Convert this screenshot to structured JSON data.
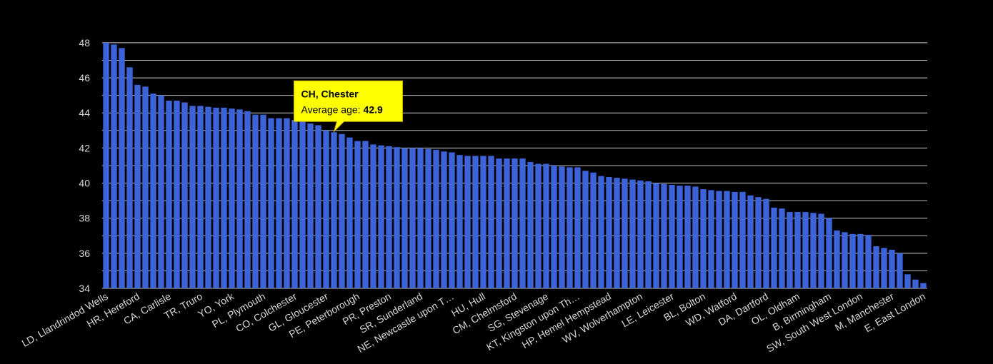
{
  "chart_data": {
    "type": "bar",
    "categories": [
      "LD, Llandrindod Wells",
      null,
      null,
      null,
      "HR, Hereford",
      null,
      null,
      null,
      "CA, Carlisle",
      null,
      null,
      null,
      "TR, Truro",
      null,
      null,
      null,
      "YO, York",
      null,
      null,
      null,
      "PL, Plymouth",
      null,
      null,
      null,
      "CO, Colchester",
      null,
      null,
      null,
      "GL, Gloucester",
      null,
      null,
      null,
      "PE, Peterborough",
      null,
      null,
      null,
      "PR, Preston",
      null,
      null,
      null,
      "SR, Sunderland",
      null,
      null,
      null,
      "NE, Newcastle upon T…",
      null,
      null,
      null,
      "HU, Hull",
      null,
      null,
      null,
      "CM, Chelmsford",
      null,
      null,
      null,
      "SG, Stevenage",
      null,
      null,
      null,
      "KT, Kingston upon Th…",
      null,
      null,
      null,
      "HP, Hemel Hempstead",
      null,
      null,
      null,
      "WV, Wolverhampton",
      null,
      null,
      null,
      "LE, Leicester",
      null,
      null,
      null,
      "BL, Bolton",
      null,
      null,
      null,
      "WD, Watford",
      null,
      null,
      null,
      "DA, Dartford",
      null,
      null,
      null,
      "OL, Oldham",
      null,
      null,
      null,
      "B, Birmingham",
      null,
      null,
      null,
      "SW, South West London",
      null,
      null,
      null,
      "M, Manchester",
      null,
      null,
      null,
      "E, East London"
    ],
    "values": [
      48.0,
      47.9,
      47.7,
      46.6,
      45.6,
      45.5,
      45.1,
      45.0,
      44.7,
      44.7,
      44.6,
      44.4,
      44.4,
      44.35,
      44.3,
      44.3,
      44.25,
      44.2,
      44.1,
      43.9,
      43.9,
      43.7,
      43.7,
      43.7,
      43.6,
      43.5,
      43.4,
      43.3,
      43.0,
      42.9,
      42.8,
      42.6,
      42.4,
      42.4,
      42.2,
      42.15,
      42.1,
      42.05,
      42.0,
      42.0,
      42.0,
      41.95,
      41.9,
      41.8,
      41.75,
      41.6,
      41.55,
      41.55,
      41.55,
      41.55,
      41.4,
      41.4,
      41.4,
      41.4,
      41.2,
      41.1,
      41.1,
      41.0,
      40.95,
      40.9,
      40.9,
      40.7,
      40.6,
      40.4,
      40.35,
      40.3,
      40.25,
      40.2,
      40.15,
      40.1,
      40.0,
      39.95,
      39.9,
      39.85,
      39.85,
      39.8,
      39.65,
      39.6,
      39.55,
      39.55,
      39.5,
      39.5,
      39.3,
      39.2,
      39.1,
      38.6,
      38.55,
      38.35,
      38.35,
      38.35,
      38.3,
      38.25,
      38.0,
      37.3,
      37.2,
      37.1,
      37.1,
      37.05,
      36.4,
      36.3,
      36.2,
      36.0,
      34.8,
      34.5,
      34.3
    ],
    "color": "#3d63d9",
    "ylim": [
      34,
      48.2
    ],
    "yticks": [
      34,
      36,
      38,
      40,
      42,
      44,
      46,
      48
    ],
    "yminorticks": [
      35,
      37,
      39,
      41,
      43,
      45,
      47
    ],
    "grid": true,
    "tooltip": {
      "title": "CH, Chester",
      "label": "Average age:",
      "value": 42.9
    }
  }
}
